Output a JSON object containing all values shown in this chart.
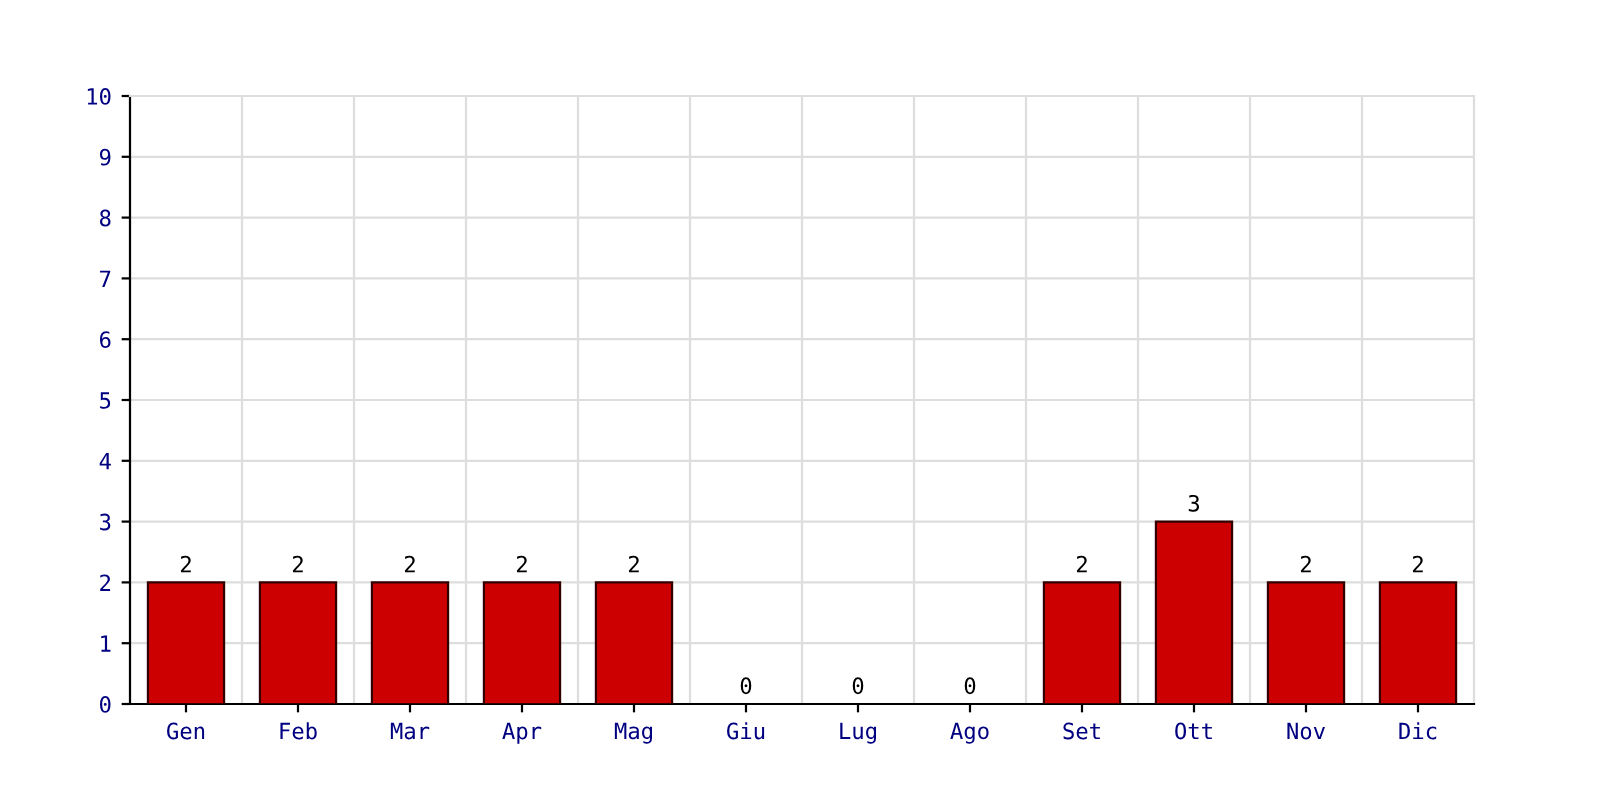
{
  "chart_data": {
    "type": "bar",
    "categories": [
      "Gen",
      "Feb",
      "Mar",
      "Apr",
      "Mag",
      "Giu",
      "Lug",
      "Ago",
      "Set",
      "Ott",
      "Nov",
      "Dic"
    ],
    "values": [
      2,
      2,
      2,
      2,
      2,
      0,
      0,
      0,
      2,
      3,
      2,
      2
    ],
    "color": "#cc0000",
    "ylim": [
      0,
      10
    ],
    "yticks": [
      0,
      1,
      2,
      3,
      4,
      5,
      6,
      7,
      8,
      9,
      10
    ],
    "grid": true,
    "data_labels": true
  }
}
